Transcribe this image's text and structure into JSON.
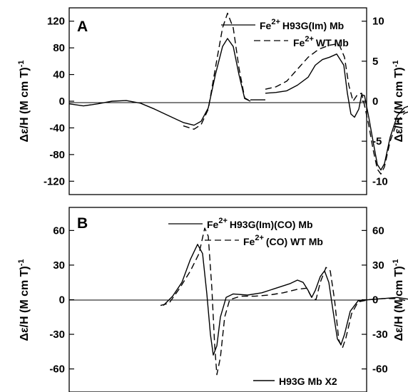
{
  "chart_data": [
    {
      "type": "line",
      "panel_label": "A",
      "ylabel_left": "Δε/H (M cm T)",
      "ylabel_left_sup": "-1",
      "ylabel_right": "Δε/H (M cm T)",
      "ylabel_right_sup": "-1",
      "ylim_left": [
        -140,
        140
      ],
      "yticks_left": [
        120,
        80,
        40,
        0,
        -40,
        -80,
        -120
      ],
      "ylim_right": [
        -11.67,
        11.67
      ],
      "yticks_right": [
        10,
        5,
        0,
        -5,
        -10
      ],
      "series": [
        {
          "name": "H93G(Im) Mb",
          "name_prefix": "Fe",
          "name_sup": "2+",
          "style": "solid",
          "segments": [
            {
              "axis": "left",
              "points": [
                [
                  0,
                  -4
                ],
                [
                  20,
                  -7
                ],
                [
                  40,
                  -4
                ],
                [
                  60,
                  0
                ],
                [
                  80,
                  1
                ],
                [
                  100,
                  -3
                ],
                [
                  120,
                  -12
                ],
                [
                  140,
                  -22
                ],
                [
                  160,
                  -32
                ],
                [
                  175,
                  -36
                ],
                [
                  185,
                  -30
                ],
                [
                  195,
                  -10
                ],
                [
                  205,
                  40
                ],
                [
                  215,
                  82
                ],
                [
                  222,
                  94
                ],
                [
                  230,
                  82
                ],
                [
                  238,
                  40
                ],
                [
                  246,
                  4
                ],
                [
                  254,
                  0
                ]
              ]
            },
            {
              "axis": "left",
              "points": [
                [
                  254,
                  2
                ],
                [
                  275,
                  2
                ]
              ]
            },
            {
              "axis": "right",
              "points": [
                [
                  275,
                  1.0
                ],
                [
                  290,
                  1.1
                ],
                [
                  305,
                  1.3
                ],
                [
                  320,
                  2.0
                ],
                [
                  335,
                  3.0
                ],
                [
                  345,
                  4.5
                ],
                [
                  355,
                  5.2
                ],
                [
                  365,
                  5.5
                ],
                [
                  375,
                  5.9
                ],
                [
                  385,
                  4.5
                ],
                [
                  390,
                  1.0
                ],
                [
                  395,
                  -1.6
                ],
                [
                  400,
                  -2.0
                ],
                [
                  406,
                  -1.0
                ],
                [
                  410,
                  0.8
                ],
                [
                  414,
                  0.7
                ],
                [
                  420,
                  -2.0
                ],
                [
                  426,
                  -5.0
                ],
                [
                  432,
                  -7.9
                ],
                [
                  437,
                  -8.6
                ],
                [
                  442,
                  -7.8
                ],
                [
                  450,
                  -4.5
                ],
                [
                  460,
                  -1.8
                ],
                [
                  470,
                  -0.8
                ],
                [
                  480,
                  -0.5
                ],
                [
                  490,
                  -0.2
                ],
                [
                  500,
                  0.4
                ],
                [
                  508,
                  0.7
                ],
                [
                  514,
                  0.3
                ]
              ]
            }
          ]
        },
        {
          "name": "WT Mb",
          "name_prefix": "Fe",
          "name_sup": "2+",
          "style": "dashed",
          "segments": [
            {
              "axis": "left",
              "points": [
                [
                  160,
                  -37
                ],
                [
                  175,
                  -42
                ],
                [
                  185,
                  -35
                ],
                [
                  195,
                  -12
                ],
                [
                  205,
                  50
                ],
                [
                  215,
                  110
                ],
                [
                  222,
                  132
                ],
                [
                  230,
                  110
                ],
                [
                  238,
                  50
                ],
                [
                  246,
                  5
                ],
                [
                  254,
                  0
                ]
              ]
            },
            {
              "axis": "right",
              "points": [
                [
                  275,
                  1.5
                ],
                [
                  290,
                  1.8
                ],
                [
                  305,
                  2.5
                ],
                [
                  320,
                  4.0
                ],
                [
                  335,
                  5.5
                ],
                [
                  350,
                  6.5
                ],
                [
                  365,
                  7.0
                ],
                [
                  378,
                  7.2
                ],
                [
                  386,
                  5.5
                ],
                [
                  392,
                  2.0
                ],
                [
                  398,
                  0
                ],
                [
                  404,
                  0.8
                ],
                [
                  410,
                  1.0
                ],
                [
                  414,
                  -0.5
                ],
                [
                  420,
                  -3.0
                ],
                [
                  426,
                  -6.0
                ],
                [
                  432,
                  -8.5
                ],
                [
                  437,
                  -9.1
                ],
                [
                  442,
                  -8.2
                ],
                [
                  450,
                  -5.0
                ],
                [
                  460,
                  -2.5
                ],
                [
                  470,
                  -1.5
                ],
                [
                  480,
                  -1.2
                ],
                [
                  490,
                  -0.6
                ],
                [
                  500,
                  0.2
                ],
                [
                  508,
                  0.6
                ],
                [
                  514,
                  0.5
                ]
              ]
            }
          ]
        }
      ]
    },
    {
      "type": "line",
      "panel_label": "B",
      "ylabel_left": "Δε/H (M cm T)",
      "ylabel_left_sup": "-1",
      "ylabel_right": "Δε/H (M cm T)",
      "ylabel_right_sup": "-1",
      "ylim_left": [
        -80,
        80
      ],
      "yticks_left": [
        60,
        30,
        0,
        -30,
        -60
      ],
      "ylim_right": [
        -80,
        80
      ],
      "yticks_right": [
        60,
        30,
        0,
        -30,
        -60
      ],
      "series": [
        {
          "name": "H93G(Im)(CO) Mb",
          "name_prefix": "Fe",
          "name_sup": "2+",
          "style": "solid",
          "segments": [
            {
              "axis": "left",
              "points": [
                [
                  132,
                  -5
                ],
                [
                  145,
                  3
                ],
                [
                  158,
                  15
                ],
                [
                  170,
                  35
                ],
                [
                  180,
                  48
                ],
                [
                  187,
                  40
                ],
                [
                  193,
                  5
                ],
                [
                  198,
                  -30
                ],
                [
                  202,
                  -48
                ],
                [
                  207,
                  -40
                ],
                [
                  212,
                  -15
                ],
                [
                  220,
                  2
                ],
                [
                  230,
                  5
                ],
                [
                  250,
                  4
                ],
                [
                  270,
                  6
                ],
                [
                  290,
                  10
                ],
                [
                  310,
                  14
                ],
                [
                  320,
                  17
                ],
                [
                  328,
                  15
                ],
                [
                  335,
                  8
                ],
                [
                  340,
                  2
                ],
                [
                  345,
                  8
                ],
                [
                  352,
                  20
                ],
                [
                  358,
                  25
                ],
                [
                  364,
                  15
                ],
                [
                  370,
                  -10
                ],
                [
                  376,
                  -34
                ],
                [
                  381,
                  -39
                ],
                [
                  386,
                  -30
                ],
                [
                  394,
                  -10
                ],
                [
                  405,
                  -1
                ],
                [
                  420,
                  0
                ],
                [
                  440,
                  1
                ],
                [
                  460,
                  2
                ],
                [
                  480,
                  0
                ],
                [
                  500,
                  2
                ],
                [
                  514,
                  0
                ]
              ]
            }
          ]
        },
        {
          "name": "(CO) WT Mb",
          "name_prefix": "Fe",
          "name_sup": "2+",
          "style": "dashed",
          "segments": [
            {
              "axis": "left",
              "points": [
                [
                  128,
                  -5
                ],
                [
                  140,
                  -3
                ],
                [
                  155,
                  10
                ],
                [
                  170,
                  25
                ],
                [
                  182,
                  40
                ],
                [
                  190,
                  62
                ],
                [
                  195,
                  55
                ],
                [
                  200,
                  10
                ],
                [
                  204,
                  -40
                ],
                [
                  207,
                  -65
                ],
                [
                  212,
                  -50
                ],
                [
                  218,
                  -15
                ],
                [
                  225,
                  0
                ],
                [
                  240,
                  3
                ],
                [
                  260,
                  3
                ],
                [
                  280,
                  4
                ],
                [
                  300,
                  6
                ],
                [
                  320,
                  9
                ],
                [
                  333,
                  10
                ],
                [
                  340,
                  2
                ],
                [
                  346,
                  0
                ],
                [
                  352,
                  15
                ],
                [
                  360,
                  28
                ],
                [
                  366,
                  25
                ],
                [
                  372,
                  0
                ],
                [
                  378,
                  -35
                ],
                [
                  383,
                  -42
                ],
                [
                  388,
                  -33
                ],
                [
                  396,
                  -12
                ],
                [
                  405,
                  -2
                ],
                [
                  420,
                  0
                ],
                [
                  440,
                  1
                ],
                [
                  460,
                  1
                ],
                [
                  480,
                  -2
                ],
                [
                  500,
                  1
                ],
                [
                  514,
                  -1
                ]
              ]
            }
          ]
        }
      ],
      "annotation": "H93G Mb X2"
    }
  ]
}
